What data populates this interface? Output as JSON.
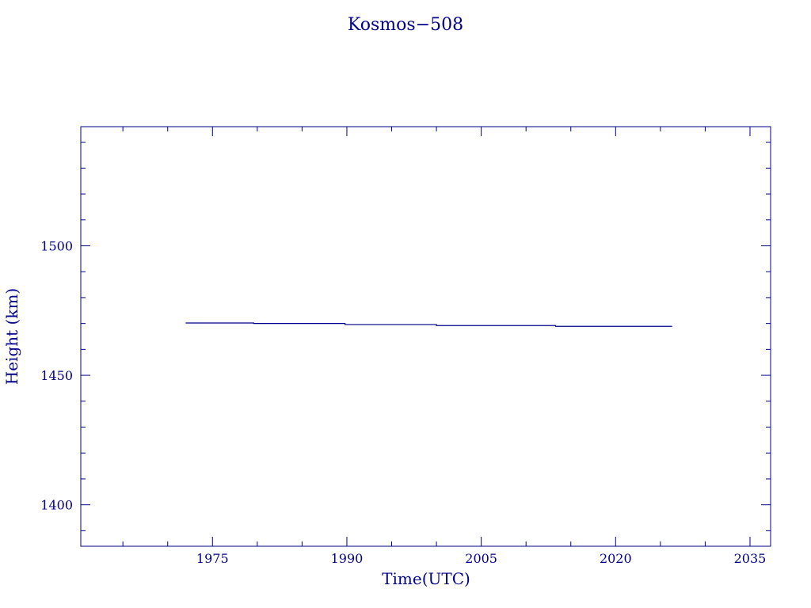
{
  "chart_data": {
    "type": "line",
    "title": "Kosmos−508",
    "xlabel": "Time(UTC)",
    "ylabel": "Height (km)",
    "xlim": [
      1960.3,
      2037.3
    ],
    "ylim": [
      1384,
      1546
    ],
    "x_ticks": [
      1975,
      1990,
      2005,
      2020,
      2035
    ],
    "x_tick_labels": [
      "1975",
      "1990",
      "2005",
      "2020",
      "2035"
    ],
    "y_ticks": [
      1400,
      1450,
      1500
    ],
    "y_tick_labels": [
      "1400",
      "1450",
      "1500"
    ],
    "grid": false,
    "series": [
      {
        "x": [
          1972.0,
          1979.6,
          1979.6,
          1989.8,
          1989.8,
          2000.0,
          2000.0,
          2013.3,
          2013.3,
          2026.3
        ],
        "y": [
          1470.2,
          1470.2,
          1470.0,
          1470.0,
          1469.6,
          1469.6,
          1469.2,
          1469.2,
          1468.9,
          1468.9
        ]
      }
    ]
  }
}
